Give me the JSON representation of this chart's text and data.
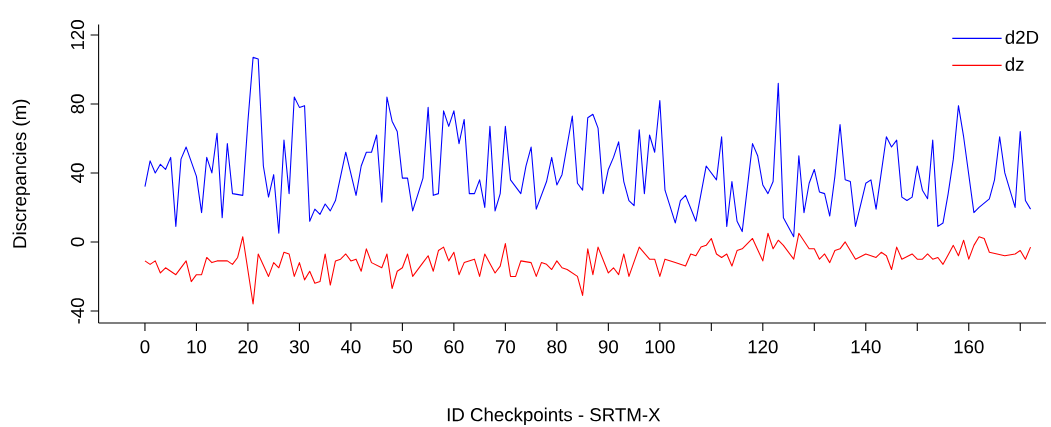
{
  "chart_data": {
    "type": "line",
    "xlabel": "ID Checkpoints - SRTM-X",
    "ylabel": "Discrepancies (m)",
    "xlim": [
      -9,
      175
    ],
    "ylim": [
      -47,
      126
    ],
    "xticks": [
      0,
      10,
      20,
      30,
      40,
      50,
      60,
      70,
      80,
      90,
      100,
      {
        "value": 110,
        "label": null
      },
      120,
      {
        "value": 130,
        "label": null
      },
      140,
      {
        "value": 150,
        "label": null
      },
      160,
      {
        "value": 170,
        "label": null
      }
    ],
    "yticks": [
      -40,
      0,
      40,
      80,
      120
    ],
    "legend": "top right",
    "marker": "none",
    "line_style": "solid",
    "series": [
      {
        "name": "d2D",
        "color": "#0000ff",
        "x": [
          0,
          1,
          2,
          3,
          4,
          5,
          6,
          7,
          8,
          10,
          11,
          12,
          13,
          14,
          15,
          16,
          17,
          19,
          20,
          21,
          22,
          23,
          24,
          25,
          26,
          27,
          28,
          29,
          30,
          31,
          32,
          33,
          34,
          35,
          36,
          37,
          39,
          41,
          42,
          43,
          44,
          45,
          46,
          47,
          48,
          49,
          50,
          51,
          52,
          54,
          55,
          56,
          57,
          58,
          59,
          60,
          61,
          62,
          63,
          64,
          65,
          66,
          67,
          68,
          69,
          70,
          71,
          73,
          74,
          75,
          76,
          78,
          79,
          80,
          81,
          83,
          84,
          85,
          86,
          87,
          88,
          89,
          90,
          91,
          92,
          93,
          94,
          95,
          96,
          97,
          98,
          99,
          100,
          101,
          103,
          104,
          105,
          107,
          109,
          111,
          112,
          113,
          114,
          115,
          116,
          118,
          119,
          120,
          121,
          122,
          123,
          124,
          126,
          127,
          128,
          129,
          130,
          131,
          132,
          133,
          134,
          135,
          136,
          137,
          138,
          140,
          141,
          142,
          143,
          144,
          145,
          146,
          147,
          148,
          149,
          150,
          151,
          152,
          153,
          154,
          155,
          156,
          157,
          158,
          159,
          161,
          162,
          164,
          165,
          166,
          167,
          169,
          170,
          171,
          172
        ],
        "values": [
          32,
          47,
          40,
          45,
          42,
          49,
          9,
          48,
          55,
          38,
          17,
          49,
          40,
          63,
          14,
          57,
          28,
          27,
          70,
          107,
          106,
          44,
          26,
          39,
          5,
          59,
          28,
          84,
          78,
          79,
          12,
          19,
          16,
          22,
          18,
          24,
          52,
          27,
          44,
          52,
          52,
          62,
          23,
          84,
          70,
          64,
          37,
          37,
          18,
          37,
          78,
          27,
          28,
          76,
          67,
          76,
          57,
          71,
          28,
          28,
          36,
          20,
          67,
          18,
          28,
          67,
          36,
          28,
          44,
          55,
          19,
          35,
          49,
          33,
          39,
          73,
          34,
          30,
          72,
          74,
          66,
          28,
          42,
          49,
          58,
          35,
          24,
          21,
          65,
          28,
          62,
          52,
          82,
          30,
          11,
          24,
          27,
          12,
          44,
          36,
          61,
          9,
          35,
          12,
          6,
          57,
          50,
          33,
          28,
          35,
          92,
          14,
          3,
          50,
          17,
          34,
          42,
          29,
          28,
          15,
          38,
          68,
          36,
          35,
          9,
          34,
          36,
          19,
          40,
          61,
          55,
          59,
          26,
          24,
          26,
          44,
          30,
          25,
          59,
          9,
          11,
          28,
          48,
          79,
          61,
          17,
          20,
          25,
          36,
          61,
          40,
          20,
          64,
          24,
          19
        ]
      },
      {
        "name": "dz",
        "color": "#ff0000",
        "x": [
          0,
          1,
          2,
          3,
          4,
          6,
          8,
          9,
          10,
          11,
          12,
          13,
          14,
          16,
          17,
          18,
          19,
          21,
          22,
          24,
          25,
          26,
          27,
          28,
          29,
          30,
          31,
          32,
          33,
          34,
          35,
          36,
          37,
          38,
          39,
          40,
          41,
          42,
          43,
          44,
          46,
          47,
          48,
          49,
          50,
          51,
          52,
          54,
          55,
          56,
          57,
          58,
          59,
          60,
          61,
          62,
          64,
          65,
          66,
          68,
          69,
          70,
          71,
          72,
          73,
          75,
          76,
          77,
          78,
          79,
          80,
          81,
          82,
          84,
          85,
          86,
          87,
          88,
          90,
          91,
          92,
          93,
          94,
          96,
          98,
          99,
          100,
          101,
          103,
          105,
          106,
          107,
          108,
          109,
          110,
          111,
          112,
          113,
          114,
          115,
          116,
          118,
          120,
          121,
          122,
          123,
          124,
          126,
          127,
          129,
          130,
          131,
          132,
          133,
          134,
          135,
          136,
          138,
          140,
          142,
          143,
          144,
          145,
          146,
          147,
          149,
          150,
          151,
          152,
          153,
          154,
          155,
          157,
          158,
          159,
          160,
          161,
          162,
          163,
          164,
          167,
          169,
          170,
          171,
          172
        ],
        "values": [
          -11,
          -13,
          -11,
          -18,
          -15,
          -19,
          -11,
          -23,
          -19,
          -19,
          -9,
          -12,
          -11,
          -11,
          -13,
          -9,
          3,
          -36,
          -7,
          -20,
          -12,
          -15,
          -6,
          -7,
          -20,
          -12,
          -22,
          -17,
          -24,
          -23,
          -7,
          -25,
          -11,
          -10,
          -7,
          -11,
          -10,
          -17,
          -4,
          -12,
          -15,
          -7,
          -27,
          -17,
          -15,
          -7,
          -20,
          -12,
          -8,
          -17,
          -5,
          -3,
          -11,
          -6,
          -19,
          -12,
          -10,
          -20,
          -7,
          -18,
          -14,
          -1,
          -20,
          -20,
          -11,
          -12,
          -20,
          -12,
          -13,
          -16,
          -11,
          -15,
          -16,
          -20,
          -31,
          -4,
          -19,
          -3,
          -18,
          -15,
          -19,
          -7,
          -20,
          -3,
          -10,
          -10,
          -20,
          -10,
          -12,
          -14,
          -7,
          -8,
          -3,
          -2,
          2,
          -7,
          -9,
          -7,
          -14,
          -5,
          -4,
          2,
          -11,
          5,
          -4,
          1,
          -2,
          -10,
          5,
          -4,
          -4,
          -10,
          -7,
          -12,
          -5,
          -4,
          0,
          -10,
          -7,
          -9,
          -6,
          -8,
          -16,
          -3,
          -10,
          -7,
          -10,
          -10,
          -7,
          -10,
          -9,
          -13,
          -2,
          -8,
          1,
          -10,
          -2,
          3,
          2,
          -6,
          -8,
          -7,
          -5,
          -10,
          -3
        ]
      }
    ]
  }
}
